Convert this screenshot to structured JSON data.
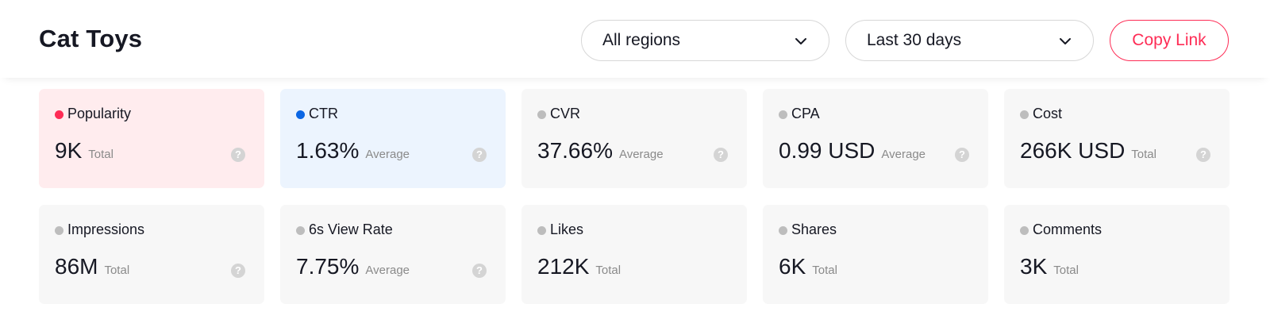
{
  "header": {
    "title": "Cat Toys",
    "region_select": "All regions",
    "date_select": "Last 30 days",
    "copy_link": "Copy Link"
  },
  "colors": {
    "accent": "#fe2c55",
    "popularity_dot": "#fe2c55",
    "ctr_dot": "#0b66e4",
    "neutral_dot": "#bdbdbd",
    "popularity_card_bg": "#ffecee",
    "ctr_card_bg": "#ecf4fe",
    "card_bg": "#f7f7f7"
  },
  "metrics": [
    {
      "label": "Popularity",
      "value": "9K",
      "agg": "Total",
      "help": "?"
    },
    {
      "label": "CTR",
      "value": "1.63%",
      "agg": "Average",
      "help": "?"
    },
    {
      "label": "CVR",
      "value": "37.66%",
      "agg": "Average",
      "help": "?"
    },
    {
      "label": "CPA",
      "value": "0.99 USD",
      "agg": "Average",
      "help": "?"
    },
    {
      "label": "Cost",
      "value": "266K USD",
      "agg": "Total",
      "help": "?"
    },
    {
      "label": "Impressions",
      "value": "86M",
      "agg": "Total",
      "help": "?"
    },
    {
      "label": "6s View Rate",
      "value": "7.75%",
      "agg": "Average",
      "help": "?"
    },
    {
      "label": "Likes",
      "value": "212K",
      "agg": "Total"
    },
    {
      "label": "Shares",
      "value": "6K",
      "agg": "Total"
    },
    {
      "label": "Comments",
      "value": "3K",
      "agg": "Total"
    }
  ],
  "icons": {
    "dropdown": "chevron-down-icon",
    "help": "help-icon"
  }
}
